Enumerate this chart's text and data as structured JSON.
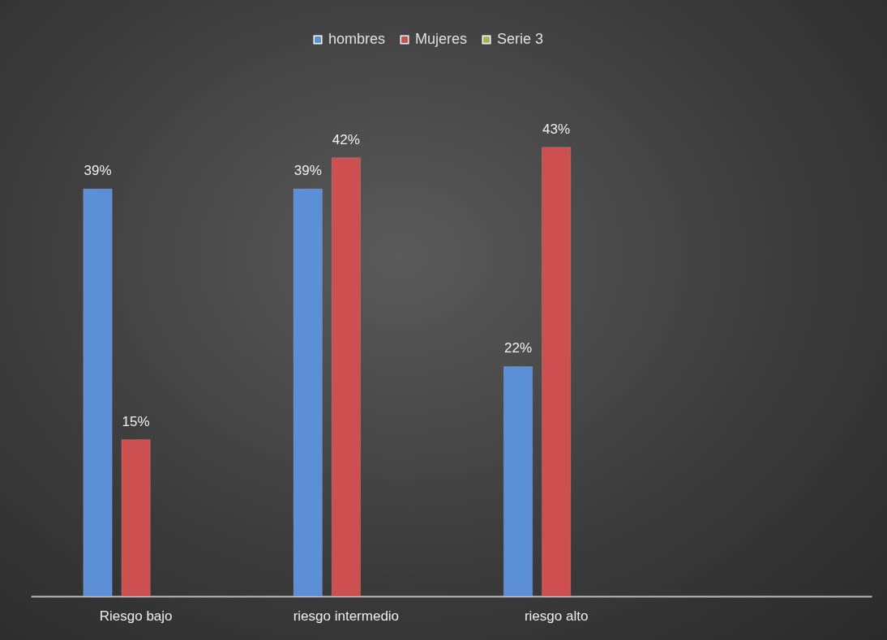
{
  "chart_data": {
    "type": "bar",
    "categories": [
      "Riesgo bajo",
      "riesgo intermedio",
      "riesgo alto",
      null
    ],
    "series": [
      {
        "name": "hombres",
        "color": "#5b8fd6",
        "values": [
          39,
          39,
          22,
          null
        ],
        "value_labels": [
          "39%",
          "39%",
          "22%",
          null
        ]
      },
      {
        "name": "Mujeres",
        "color": "#cd4f4f",
        "values": [
          15,
          42,
          43,
          null
        ],
        "value_labels": [
          "15%",
          "42%",
          "43%",
          null
        ]
      },
      {
        "name": "Serie 3",
        "color": "#9bbb59",
        "values": [
          null,
          null,
          null,
          null
        ],
        "value_labels": [
          null,
          null,
          null,
          null
        ]
      }
    ],
    "legend": "top",
    "grid": false
  }
}
